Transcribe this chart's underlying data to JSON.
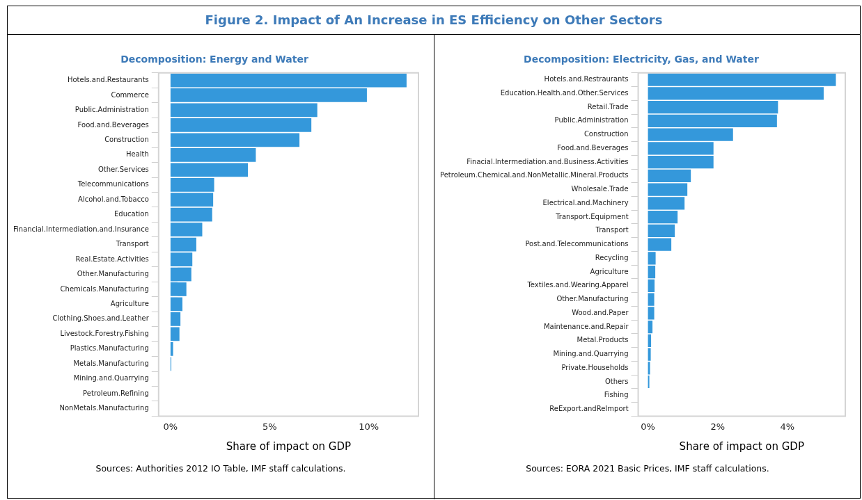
{
  "chart_data": [
    {
      "type": "bar",
      "orientation": "horizontal",
      "title": "Figure 2. Impact of An Increase in ES Efficiency on Other Sectors",
      "subtitle": "Decomposition: Energy and Water",
      "xlabel": "Share of impact on GDP",
      "color": "#3498db",
      "grid": false,
      "legend": false,
      "categories": [
        "Hotels.and.Restaurants",
        "Commerce",
        "Public.Administration",
        "Food.and.Beverages",
        "Construction",
        "Health",
        "Other.Services",
        "Telecommunications",
        "Alcohol.and.Tobacco",
        "Education",
        "Financial.Intermediation.and.Insurance",
        "Transport",
        "Real.Estate.Activities",
        "Other.Manufacturing",
        "Chemicals.Manufacturing",
        "Agriculture",
        "Clothing.Shoes.and.Leather",
        "Livestock.Forestry.Fishing",
        "Plastics.Manufacturing",
        "Metals.Manufacturing",
        "Mining.and.Quarrying",
        "Petroleum.Refining",
        "NonMetals.Manufacturing"
      ],
      "values": [
        11.9,
        9.9,
        7.4,
        7.1,
        6.5,
        4.3,
        3.9,
        2.2,
        2.15,
        2.1,
        1.6,
        1.3,
        1.1,
        1.05,
        0.8,
        0.6,
        0.5,
        0.45,
        0.13,
        0.04,
        0,
        0,
        0
      ],
      "xlim": [
        -0.6,
        12.5
      ],
      "xticks": [
        {
          "value": 0,
          "label": "0%"
        },
        {
          "value": 5,
          "label": "5%"
        },
        {
          "value": 10,
          "label": "10%"
        }
      ],
      "annotations": [
        "Sources: Authorities 2012 IO Table, IMF staff calculations."
      ]
    },
    {
      "type": "bar",
      "orientation": "horizontal",
      "title": "Decomposition: Electricity, Gas, and Water",
      "xlabel": "Share of impact on GDP",
      "color": "#3498db",
      "grid": false,
      "legend": false,
      "categories": [
        "Hotels.and.Restraurants",
        "Education.Health.and.Other.Services",
        "Retail.Trade",
        "Public.Administration",
        "Construction",
        "Food.and.Beverages",
        "Finacial.Intermediation.and.Business.Activities",
        "Petroleum.Chemical.and.NonMetallic.Mineral.Products",
        "Wholesale.Trade",
        "Electrical.and.Machinery",
        "Transport.Equipment",
        "Transport",
        "Post.and.Telecommunications",
        "Recycling",
        "Agriculture",
        "Textiles.and.Wearing.Apparel",
        "Other.Manufacturing",
        "Wood.and.Paper",
        "Maintenance.and.Repair",
        "Metal.Products",
        "Mining.and.Quarrying",
        "Private.Households",
        "Others",
        "Fishing",
        "ReExport.andReImport"
      ],
      "values": [
        5.39,
        5.04,
        3.73,
        3.7,
        2.44,
        1.88,
        1.88,
        1.23,
        1.13,
        1.05,
        0.85,
        0.77,
        0.67,
        0.22,
        0.21,
        0.19,
        0.18,
        0.18,
        0.13,
        0.09,
        0.08,
        0.06,
        0.04,
        0,
        0
      ],
      "xlim": [
        -0.28,
        5.66
      ],
      "xticks": [
        {
          "value": 0,
          "label": "0%"
        },
        {
          "value": 2,
          "label": "2%"
        },
        {
          "value": 4,
          "label": "4%"
        }
      ],
      "annotations": [
        "Sources: EORA 2021 Basic Prices, IMF staff calculations."
      ]
    }
  ]
}
